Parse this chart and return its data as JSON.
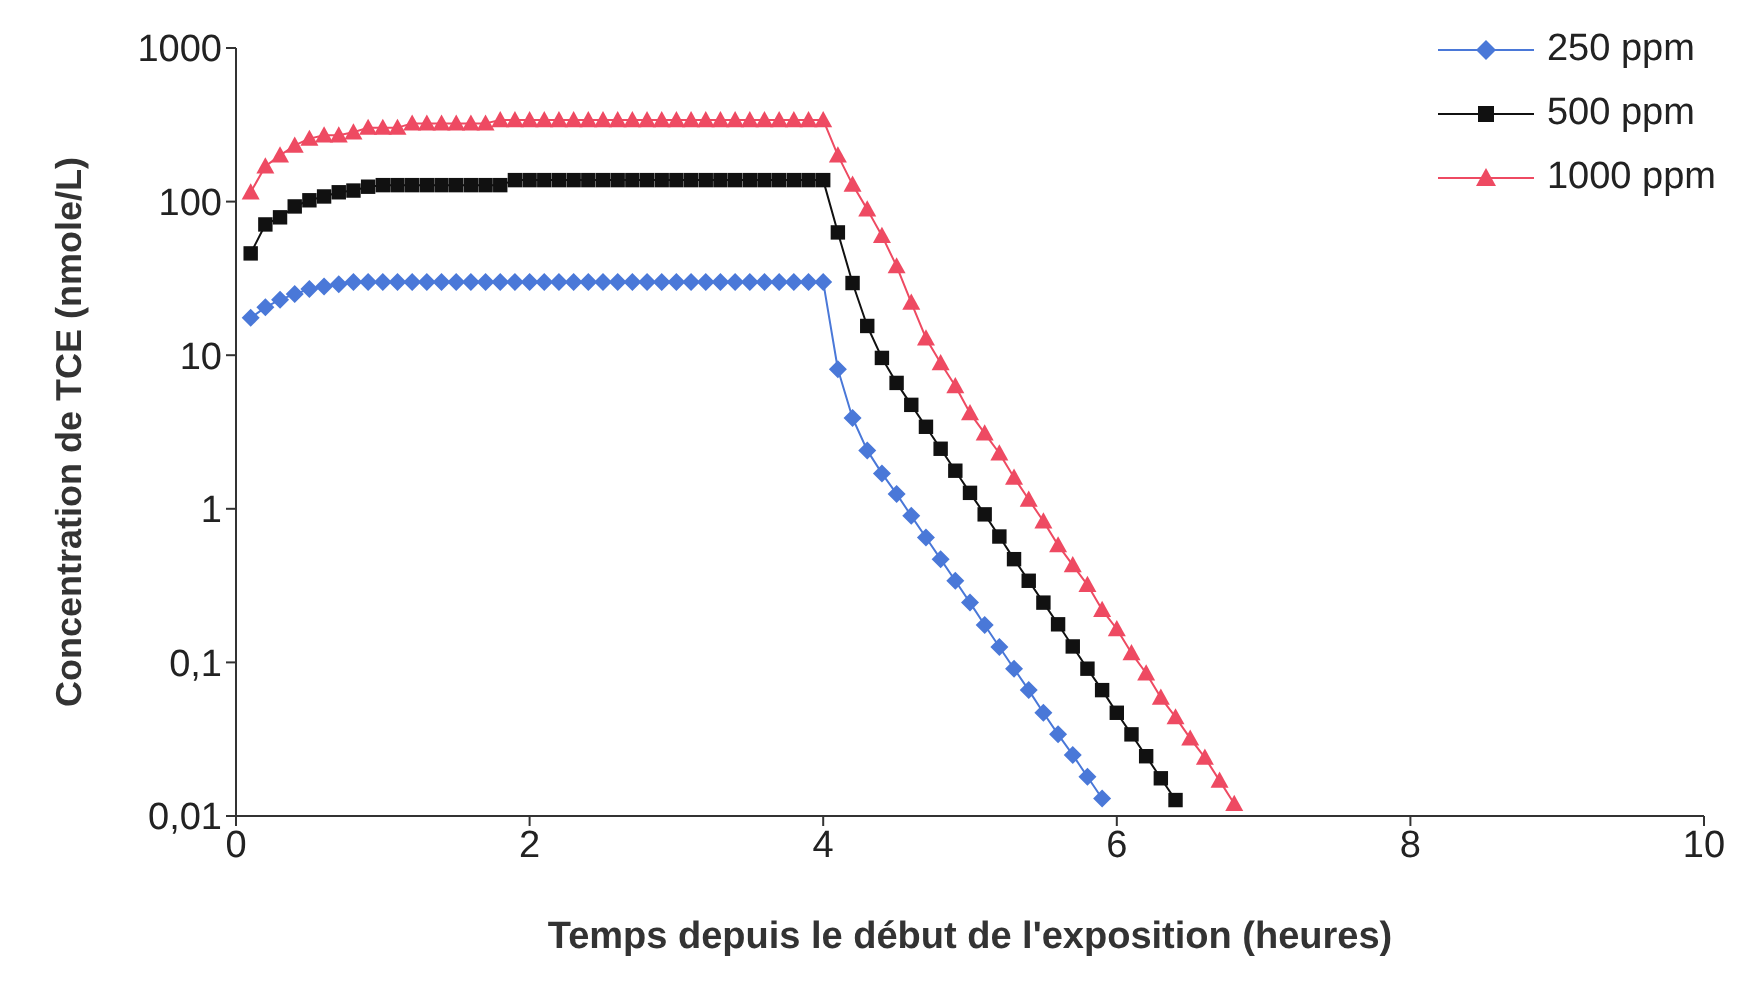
{
  "chart_data": {
    "type": "line",
    "xlabel": "Temps depuis le début de l'exposition (heures)",
    "ylabel": "Concentration de TCE (nmole/L)",
    "log": "y",
    "grid": false,
    "legend": "top right",
    "xlim": [
      0,
      10
    ],
    "xticks": [
      0,
      2,
      4,
      6,
      8,
      10
    ],
    "ylim": [
      0.01,
      1000
    ],
    "yticks": [
      {
        "value": 0.01,
        "label": "0,01"
      },
      {
        "value": 0.1,
        "label": "0,1"
      },
      1,
      10,
      100,
      1000
    ],
    "x": [
      0.1,
      0.2,
      0.3,
      0.4,
      0.5,
      0.6,
      0.7,
      0.8,
      0.9,
      1.0,
      1.1,
      1.2,
      1.3,
      1.4,
      1.5,
      1.6,
      1.7,
      1.8,
      1.9,
      2.0,
      2.1,
      2.2,
      2.3,
      2.4,
      2.5,
      2.6,
      2.7,
      2.8,
      2.9,
      3.0,
      3.1,
      3.2,
      3.3,
      3.4,
      3.5,
      3.6,
      3.7,
      3.8,
      3.9,
      4.0,
      4.1,
      4.2,
      4.3,
      4.4,
      4.5,
      4.6,
      4.7,
      4.8,
      4.9,
      5.0,
      5.1,
      5.2,
      5.3,
      5.4,
      5.5,
      5.6,
      5.7,
      5.8,
      5.9,
      6.0,
      6.1,
      6.2,
      6.3,
      6.4,
      6.5,
      6.6,
      6.7,
      6.8
    ],
    "series": [
      {
        "name": "250 ppm",
        "color": "#4a78d8",
        "marker": "diamond",
        "values": [
          17.5,
          20.5,
          23,
          25,
          27,
          28,
          29,
          30,
          30,
          30,
          30,
          30,
          30,
          30,
          30,
          30,
          30,
          30,
          30,
          30,
          30,
          30,
          30,
          30,
          30,
          30,
          30,
          30,
          30,
          30,
          30,
          30,
          30,
          30,
          30,
          30,
          30,
          30,
          30,
          30,
          8.1,
          3.9,
          2.4,
          1.7,
          1.25,
          0.9,
          0.65,
          0.47,
          0.34,
          0.245,
          0.175,
          0.126,
          0.091,
          0.066,
          0.047,
          0.034,
          0.025,
          0.018,
          0.013,
          null,
          null,
          null,
          null,
          null,
          null,
          null,
          null,
          null
        ]
      },
      {
        "name": "500 ppm",
        "color": "#111111",
        "marker": "square",
        "values": [
          46,
          71,
          79,
          93,
          102,
          108,
          115,
          118,
          125,
          128,
          128,
          128,
          128,
          128,
          128,
          128,
          128,
          128,
          138,
          138,
          138,
          138,
          138,
          138,
          138,
          138,
          138,
          138,
          138,
          138,
          138,
          138,
          138,
          138,
          138,
          138,
          138,
          138,
          138,
          138,
          63,
          29.5,
          15.5,
          9.6,
          6.6,
          4.75,
          3.42,
          2.46,
          1.77,
          1.27,
          0.92,
          0.66,
          0.47,
          0.34,
          0.245,
          0.177,
          0.127,
          0.091,
          0.066,
          0.047,
          0.034,
          0.0245,
          0.0176,
          0.0127,
          null,
          null,
          null,
          null
        ]
      },
      {
        "name": "1000 ppm",
        "color": "#ee4a62",
        "marker": "triangle",
        "values": [
          115,
          170,
          200,
          232,
          257,
          270,
          270,
          283,
          303,
          303,
          303,
          323,
          323,
          323,
          323,
          323,
          323,
          340,
          340,
          340,
          340,
          340,
          340,
          340,
          340,
          340,
          340,
          340,
          340,
          340,
          340,
          340,
          340,
          340,
          340,
          340,
          340,
          340,
          340,
          340,
          200,
          129,
          89,
          60,
          38,
          22,
          12.9,
          8.9,
          6.3,
          4.2,
          3.1,
          2.3,
          1.6,
          1.15,
          0.83,
          0.58,
          0.43,
          0.32,
          0.22,
          0.165,
          0.115,
          0.085,
          0.059,
          0.044,
          0.032,
          0.024,
          0.017,
          0.012
        ]
      }
    ]
  }
}
